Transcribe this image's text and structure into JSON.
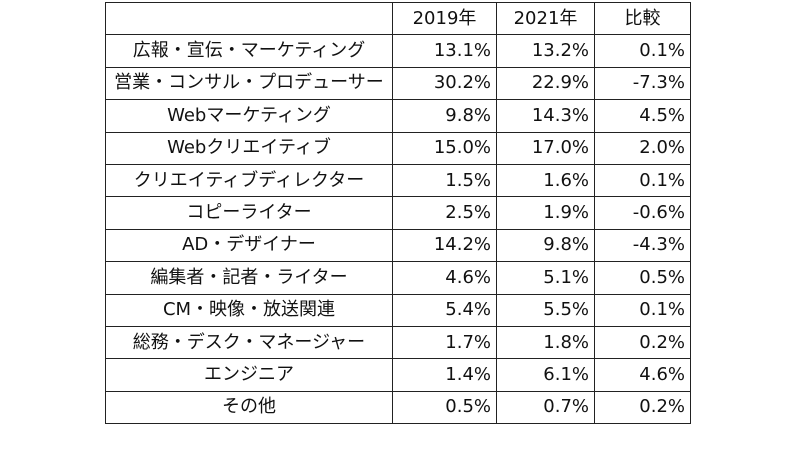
{
  "table": {
    "headers": [
      "",
      "2019年",
      "2021年",
      "比較"
    ],
    "rows": [
      {
        "label": "広報・宣伝・マーケティング",
        "y2019": "13.1%",
        "y2021": "13.2%",
        "diff": "0.1%"
      },
      {
        "label": "営業・コンサル・プロデューサー",
        "y2019": "30.2%",
        "y2021": "22.9%",
        "diff": "-7.3%"
      },
      {
        "label": "Webマーケティング",
        "y2019": "9.8%",
        "y2021": "14.3%",
        "diff": "4.5%"
      },
      {
        "label": "Webクリエイティブ",
        "y2019": "15.0%",
        "y2021": "17.0%",
        "diff": "2.0%"
      },
      {
        "label": "クリエイティブディレクター",
        "y2019": "1.5%",
        "y2021": "1.6%",
        "diff": "0.1%"
      },
      {
        "label": "コピーライター",
        "y2019": "2.5%",
        "y2021": "1.9%",
        "diff": "-0.6%"
      },
      {
        "label": "AD・デザイナー",
        "y2019": "14.2%",
        "y2021": "9.8%",
        "diff": "-4.3%"
      },
      {
        "label": "編集者・記者・ライター",
        "y2019": "4.6%",
        "y2021": "5.1%",
        "diff": "0.5%"
      },
      {
        "label": "CM・映像・放送関連",
        "y2019": "5.4%",
        "y2021": "5.5%",
        "diff": "0.1%"
      },
      {
        "label": "総務・デスク・マネージャー",
        "y2019": "1.7%",
        "y2021": "1.8%",
        "diff": "0.2%"
      },
      {
        "label": "エンジニア",
        "y2019": "1.4%",
        "y2021": "6.1%",
        "diff": "4.6%"
      },
      {
        "label": "その他",
        "y2019": "0.5%",
        "y2021": "0.7%",
        "diff": "0.2%"
      }
    ]
  }
}
